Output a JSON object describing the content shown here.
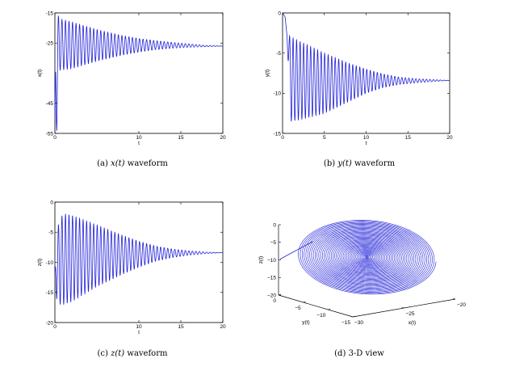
{
  "chart_data": [
    {
      "type": "line",
      "caption": {
        "label": "(a)",
        "var": "x(t)",
        "suffix": "waveform"
      },
      "xlabel": "t",
      "ylabel": "x(t)",
      "xlim": [
        0,
        20
      ],
      "ylim": [
        -55,
        -15
      ],
      "xticks": [
        0,
        10,
        15,
        20
      ],
      "yticks": [
        -15,
        -25,
        -45,
        -55
      ],
      "series": [
        {
          "color": "#1f1fd8",
          "x": [
            0,
            0.1,
            0.25,
            0.45,
            0.6,
            2,
            5,
            8,
            10,
            12,
            14,
            16,
            18,
            20
          ],
          "upper_envelope": [
            -50,
            -20,
            -16,
            -16,
            -17,
            -18,
            -20.5,
            -22.5,
            -23.5,
            -24.2,
            -24.8,
            -25.3,
            -25.8,
            -26
          ],
          "lower_envelope": [
            -50,
            -54,
            -54,
            -35,
            -34,
            -33.5,
            -31,
            -29,
            -28,
            -27.2,
            -26.7,
            -26.4,
            -26.2,
            -26
          ],
          "period": 0.42
        }
      ]
    },
    {
      "type": "line",
      "caption": {
        "label": "(b)",
        "var": "y(t)",
        "suffix": "waveform"
      },
      "xlabel": "t",
      "ylabel": "y(t)",
      "xlim": [
        0,
        20
      ],
      "ylim": [
        -15,
        0
      ],
      "xticks": [
        0,
        5,
        10,
        15,
        20
      ],
      "yticks": [
        0,
        -5,
        -10,
        -15
      ],
      "series": [
        {
          "color": "#1f1fd8",
          "x": [
            0,
            0.3,
            0.5,
            1,
            2,
            5,
            8,
            10,
            12,
            14,
            16,
            18,
            20
          ],
          "upper_envelope": [
            0,
            -0.5,
            -2.5,
            -3,
            -3.5,
            -5,
            -6.3,
            -7,
            -7.6,
            -8,
            -8.2,
            -8.3,
            -8.4
          ],
          "lower_envelope": [
            0,
            -0.5,
            -2.5,
            -13.5,
            -13.3,
            -12.5,
            -11,
            -10,
            -9.3,
            -8.9,
            -8.7,
            -8.55,
            -8.4
          ],
          "period": 0.42
        }
      ]
    },
    {
      "type": "line",
      "caption": {
        "label": "(c)",
        "var": "z(t)",
        "suffix": "waveform"
      },
      "xlabel": "t",
      "ylabel": "z(t)",
      "xlim": [
        0,
        20
      ],
      "ylim": [
        -20,
        0
      ],
      "xticks": [
        0,
        10,
        15,
        20
      ],
      "yticks": [
        0,
        -5,
        -10,
        -15,
        -20
      ],
      "series": [
        {
          "color": "#1f1fd8",
          "x": [
            0,
            0.2,
            0.5,
            1,
            2,
            5,
            8,
            10,
            12,
            14,
            16,
            18,
            20
          ],
          "upper_envelope": [
            -12,
            -6,
            -3,
            -2,
            -2.2,
            -3.8,
            -5.5,
            -6.5,
            -7.3,
            -7.8,
            -8.1,
            -8.3,
            -8.4
          ],
          "lower_envelope": [
            -12,
            -16,
            -17,
            -17,
            -16.5,
            -14,
            -12,
            -10.8,
            -9.8,
            -9.2,
            -8.8,
            -8.55,
            -8.4
          ],
          "period": 0.42
        }
      ]
    },
    {
      "type": "line3d",
      "caption": {
        "label": "(d)",
        "suffix": "3-D view"
      },
      "xlabel": "x(t)",
      "ylabel": "y(t)",
      "zlabel": "z(t)",
      "xlim": [
        -30,
        -20
      ],
      "ylim": [
        -15,
        0
      ],
      "zlim": [
        -20,
        0
      ],
      "xticks": [
        -30,
        -25,
        -20
      ],
      "yticks": [
        0,
        -5,
        -10,
        -15
      ],
      "zticks": [
        0,
        -5,
        -10,
        -15,
        -20
      ],
      "equilibrium": {
        "x": -26,
        "y": -8.4,
        "z": -8.4
      },
      "series": [
        {
          "color": "#1f1fd8",
          "description_free": true
        }
      ]
    }
  ]
}
